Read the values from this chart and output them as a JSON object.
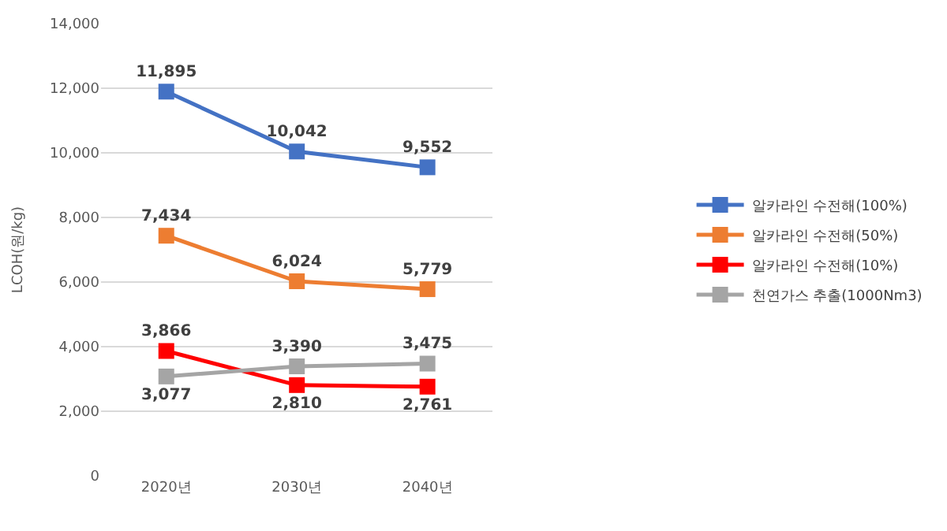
{
  "chart_data": {
    "type": "line",
    "ylabel": "LCOH(원/kg)",
    "categories": [
      "2020년",
      "2030년",
      "2040년"
    ],
    "series": [
      {
        "name": "알카라인 수전해(100%)",
        "color": "#4472c4",
        "values": [
          11895,
          10042,
          9552
        ],
        "value_labels": [
          "11,895",
          "10,042",
          "9,552"
        ]
      },
      {
        "name": "알카라인 수전해(50%)",
        "color": "#ed7d31",
        "values": [
          7434,
          6024,
          5779
        ],
        "value_labels": [
          "7,434",
          "6,024",
          "5,779"
        ]
      },
      {
        "name": "알카라인 수전해(10%)",
        "color": "#ff0000",
        "values": [
          3866,
          2810,
          2761
        ],
        "value_labels": [
          "3,866",
          "2,810",
          "2,761"
        ]
      },
      {
        "name": "천연가스 추출(1000Nm3)",
        "color": "#a5a5a5",
        "values": [
          3077,
          3390,
          3475
        ],
        "value_labels": [
          "3,077",
          "3,390",
          "3,475"
        ]
      }
    ],
    "ylim": [
      0,
      14000
    ],
    "yticks": [
      {
        "value": 0,
        "label": "0"
      },
      {
        "value": 2000,
        "label": "2,000"
      },
      {
        "value": 4000,
        "label": "4,000"
      },
      {
        "value": 6000,
        "label": "6,000"
      },
      {
        "value": 8000,
        "label": "8,000"
      },
      {
        "value": 10000,
        "label": "10,000"
      },
      {
        "value": 12000,
        "label": "12,000"
      },
      {
        "value": 14000,
        "label": "14,000"
      }
    ],
    "grid": "y",
    "legend": "right",
    "marker": "square",
    "line_style": "solid"
  }
}
